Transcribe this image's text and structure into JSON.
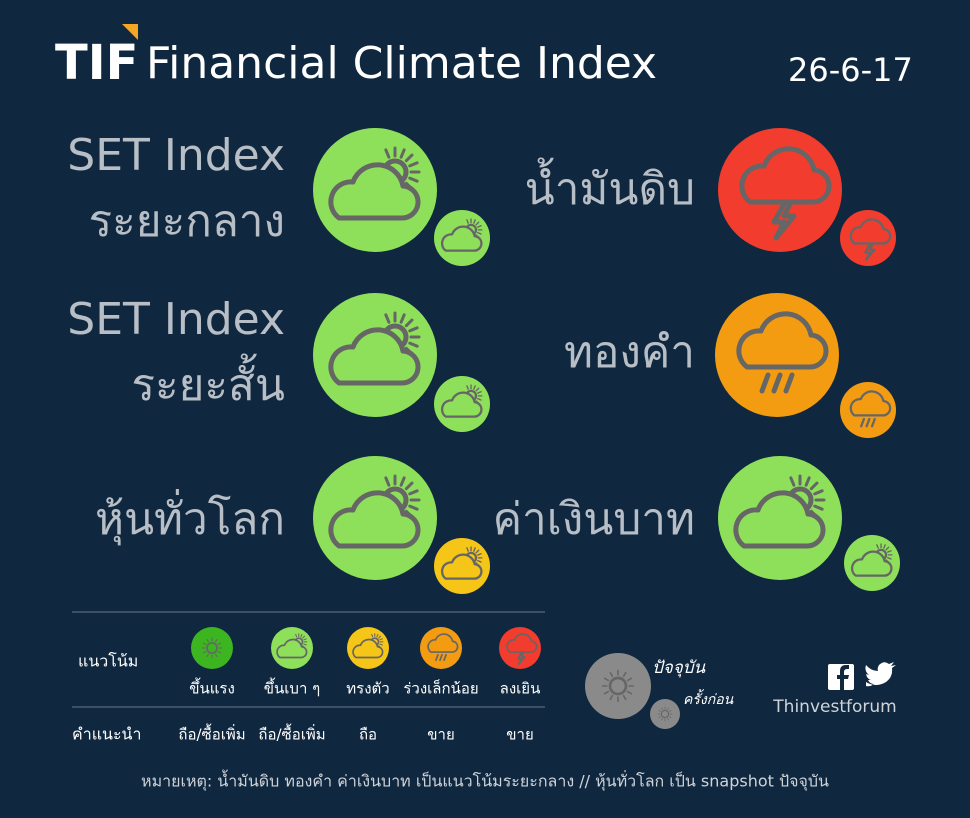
{
  "header": {
    "logo": "TIF",
    "title": "Financial Climate Index",
    "date": "26-6-17"
  },
  "indices": [
    {
      "label": [
        "SET Index",
        "ระยะกลาง"
      ]
    },
    {
      "label": [
        "SET Index",
        "ระยะสั้น"
      ]
    },
    {
      "label": [
        "หุ้นทั่วโลก"
      ]
    },
    {
      "label": [
        "น้ำมันดิบ"
      ]
    },
    {
      "label": [
        "ทองคำ"
      ]
    },
    {
      "label": [
        "ค่าเงินบาท"
      ]
    }
  ],
  "legend": {
    "trend_heading": "แนวโน้ม",
    "advice_heading": "คำแนะนำ",
    "levels": [
      {
        "trend": "ขึ้นแรง",
        "advice": "ถือ/ซื้อเพิ่ม"
      },
      {
        "trend": "ขึ้นเบา ๆ",
        "advice": "ถือ/ซื้อเพิ่ม"
      },
      {
        "trend": "ทรงตัว",
        "advice": "ถือ"
      },
      {
        "trend": "ร่วงเล็กน้อย",
        "advice": "ขาย"
      },
      {
        "trend": "ลงเยิน",
        "advice": "ขาย"
      }
    ]
  },
  "key": {
    "current": "ปัจจุบัน",
    "previous": "ครั้งก่อน"
  },
  "brand": "Thinvestforum",
  "footnote": "หมายเหตุ: น้ำมันดิบ ทองคำ ค่าเงินบาท เป็นแนวโน้มระยะกลาง // หุ้นทั่วโลก เป็น snapshot ปัจจุบัน"
}
